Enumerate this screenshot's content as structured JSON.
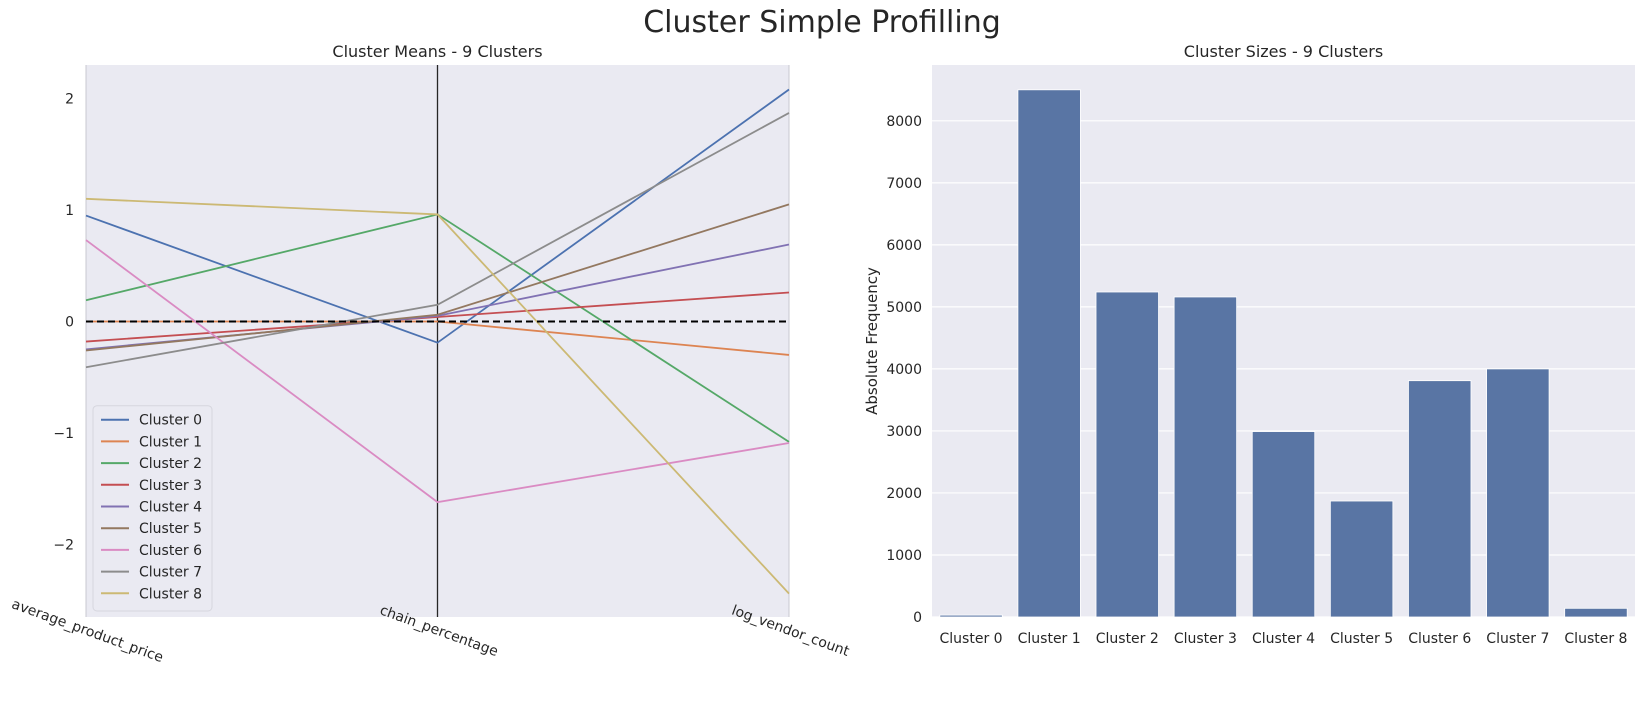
{
  "figure": {
    "suptitle": "Cluster Simple Profilling"
  },
  "chart_data": [
    {
      "type": "line",
      "title": "Cluster Means - 9 Clusters",
      "categories": [
        "average_product_price",
        "chain_percentage",
        "log_vendor_count"
      ],
      "ylim": [
        -2.65,
        2.3
      ],
      "yticks": [
        2,
        1,
        0,
        -1,
        -2
      ],
      "ytick_labels": [
        "2",
        "1",
        "0",
        "−1",
        "−2"
      ],
      "reference_line": {
        "y": 0,
        "style": "dashed",
        "color": "#000000"
      },
      "legend_position": "lower-left",
      "grid": false,
      "series": [
        {
          "name": "Cluster 0",
          "color": "#4c72b0",
          "values": [
            0.95,
            -0.19,
            2.08
          ]
        },
        {
          "name": "Cluster 1",
          "color": "#dd8452",
          "values": [
            0.0,
            0.0,
            -0.3
          ]
        },
        {
          "name": "Cluster 2",
          "color": "#55a868",
          "values": [
            0.19,
            0.96,
            -1.08
          ]
        },
        {
          "name": "Cluster 3",
          "color": "#c44e52",
          "values": [
            -0.18,
            0.04,
            0.26
          ]
        },
        {
          "name": "Cluster 4",
          "color": "#8172b3",
          "values": [
            -0.25,
            0.05,
            0.69
          ]
        },
        {
          "name": "Cluster 5",
          "color": "#937860",
          "values": [
            -0.26,
            0.06,
            1.05
          ]
        },
        {
          "name": "Cluster 6",
          "color": "#da8bc3",
          "values": [
            0.73,
            -1.62,
            -1.09
          ]
        },
        {
          "name": "Cluster 7",
          "color": "#8c8c8c",
          "values": [
            -0.41,
            0.15,
            1.87
          ]
        },
        {
          "name": "Cluster 8",
          "color": "#ccb974",
          "values": [
            1.1,
            0.96,
            -2.44
          ]
        }
      ]
    },
    {
      "type": "bar",
      "title": "Cluster Sizes - 9 Clusters",
      "ylabel": "Absolute Frequency",
      "bar_color": "#5975a4",
      "ylim": [
        0,
        8900
      ],
      "yticks": [
        0,
        1000,
        2000,
        3000,
        4000,
        5000,
        6000,
        7000,
        8000
      ],
      "grid": true,
      "categories": [
        "Cluster 0",
        "Cluster 1",
        "Cluster 2",
        "Cluster 3",
        "Cluster 4",
        "Cluster 5",
        "Cluster 6",
        "Cluster 7",
        "Cluster 8"
      ],
      "values": [
        30,
        8500,
        5240,
        5160,
        2990,
        1870,
        3810,
        4000,
        140
      ]
    }
  ]
}
